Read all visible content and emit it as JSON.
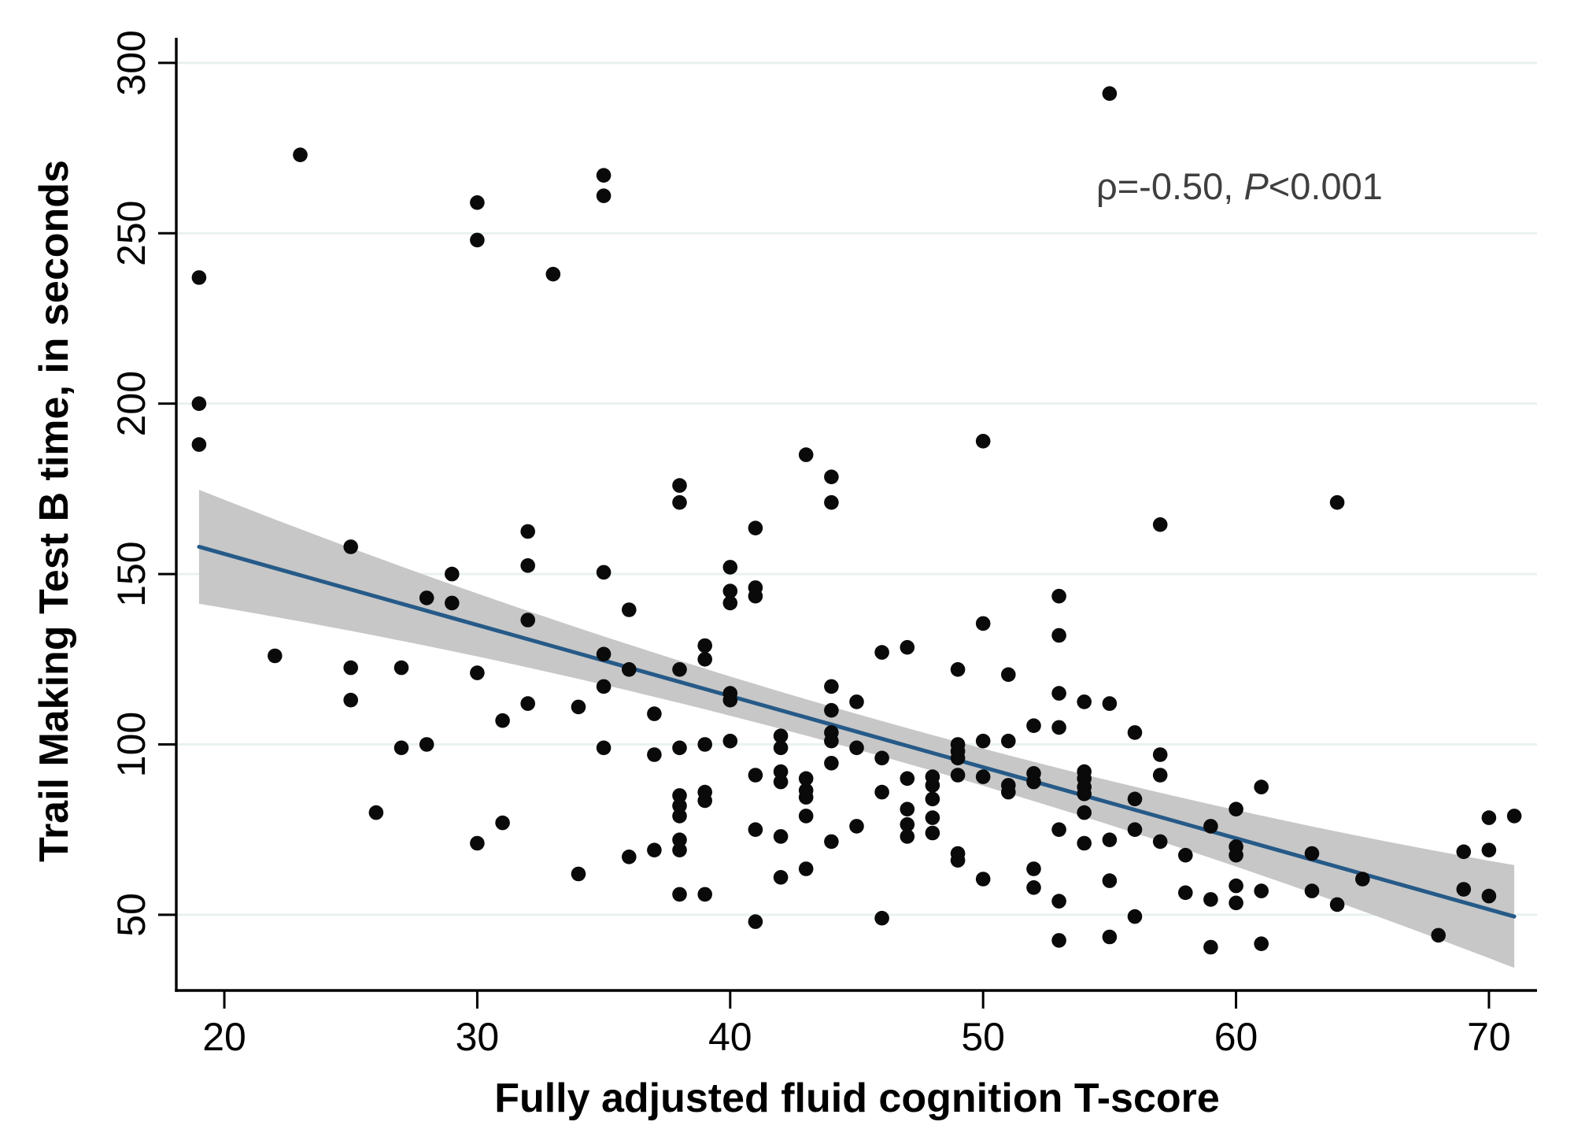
{
  "figure": {
    "annotation": {
      "rho_part": "ρ=-0.50, ",
      "p_italic": "P",
      "p_rest": "<0.001"
    }
  },
  "chart_data": {
    "type": "scatter",
    "title": "",
    "xlabel": "Fully adjusted fluid cognition T-score",
    "ylabel": "Trail Making Test B time, in seconds",
    "annotation": "ρ=-0.50, P<0.001",
    "correlation_rho": -0.5,
    "p_value": "<0.001",
    "xlim": [
      18.1,
      71.9
    ],
    "ylim": [
      27.8,
      306.9
    ],
    "x_ticks": [
      20,
      30,
      40,
      50,
      60,
      70
    ],
    "y_ticks": [
      50,
      100,
      150,
      200,
      250,
      300
    ],
    "grid": "horizontal",
    "legend": "none",
    "regression_line": {
      "x_start": 19,
      "y_start": 158,
      "x_end": 71,
      "y_end": 49.5
    },
    "ci_band": {
      "half_width_min": 5.2,
      "vertex_x": 46,
      "curvature": 0.0158,
      "x_start": 19,
      "x_end": 71
    },
    "colors": {
      "point": "#0a0a0a",
      "line": "#265a88",
      "band": "#c7c7c7",
      "grid": "#e8f2f1",
      "axis": "#000000",
      "annotation": "#3f3f3f"
    },
    "points": [
      [
        19,
        237
      ],
      [
        19,
        200
      ],
      [
        19,
        188
      ],
      [
        22,
        126
      ],
      [
        23,
        273
      ],
      [
        25,
        158
      ],
      [
        25,
        122.5
      ],
      [
        25,
        113
      ],
      [
        26,
        80
      ],
      [
        27,
        122.5
      ],
      [
        27,
        99
      ],
      [
        28,
        143
      ],
      [
        28,
        100
      ],
      [
        29,
        150
      ],
      [
        29,
        141.5
      ],
      [
        30,
        259
      ],
      [
        30,
        248
      ],
      [
        30,
        121
      ],
      [
        30,
        71
      ],
      [
        31,
        107
      ],
      [
        31,
        77
      ],
      [
        32,
        162.5
      ],
      [
        32,
        152.5
      ],
      [
        32,
        136.5
      ],
      [
        32,
        112
      ],
      [
        33,
        238
      ],
      [
        34,
        111
      ],
      [
        34,
        62
      ],
      [
        35,
        267
      ],
      [
        35,
        261
      ],
      [
        35,
        150.5
      ],
      [
        35,
        126.5
      ],
      [
        35,
        117
      ],
      [
        35,
        99
      ],
      [
        36,
        139.5
      ],
      [
        36,
        122
      ],
      [
        36,
        67
      ],
      [
        37,
        109
      ],
      [
        37,
        97
      ],
      [
        37,
        69
      ],
      [
        38,
        176
      ],
      [
        38,
        171
      ],
      [
        38,
        122
      ],
      [
        38,
        99
      ],
      [
        38,
        85
      ],
      [
        38,
        82
      ],
      [
        38,
        79
      ],
      [
        38,
        72
      ],
      [
        38,
        69
      ],
      [
        38,
        56
      ],
      [
        39,
        129
      ],
      [
        39,
        125
      ],
      [
        39,
        100
      ],
      [
        39,
        86
      ],
      [
        39,
        83.5
      ],
      [
        39,
        56
      ],
      [
        40,
        152
      ],
      [
        40,
        145
      ],
      [
        40,
        141.5
      ],
      [
        40,
        115
      ],
      [
        40,
        113
      ],
      [
        40,
        101
      ],
      [
        41,
        163.5
      ],
      [
        41,
        146
      ],
      [
        41,
        143.5
      ],
      [
        41,
        91
      ],
      [
        41,
        75
      ],
      [
        41,
        48
      ],
      [
        42,
        102.5
      ],
      [
        42,
        99
      ],
      [
        42,
        92
      ],
      [
        42,
        89
      ],
      [
        42,
        73
      ],
      [
        42,
        61
      ],
      [
        43,
        185
      ],
      [
        43,
        90
      ],
      [
        43,
        86.5
      ],
      [
        43,
        84.5
      ],
      [
        43,
        79
      ],
      [
        43,
        63.5
      ],
      [
        44,
        178.5
      ],
      [
        44,
        171
      ],
      [
        44,
        117
      ],
      [
        44,
        110
      ],
      [
        44,
        103.5
      ],
      [
        44,
        101
      ],
      [
        44,
        94.5
      ],
      [
        44,
        71.5
      ],
      [
        45,
        112.5
      ],
      [
        45,
        99
      ],
      [
        45,
        76
      ],
      [
        46,
        127
      ],
      [
        46,
        96
      ],
      [
        46,
        86
      ],
      [
        46,
        49
      ],
      [
        47,
        128.5
      ],
      [
        47,
        90
      ],
      [
        47,
        81
      ],
      [
        47,
        76.5
      ],
      [
        47,
        73
      ],
      [
        48,
        90.5
      ],
      [
        48,
        88
      ],
      [
        48,
        84
      ],
      [
        48,
        78.5
      ],
      [
        48,
        74
      ],
      [
        49,
        122
      ],
      [
        49,
        100
      ],
      [
        49,
        98
      ],
      [
        49,
        96
      ],
      [
        49,
        91
      ],
      [
        49,
        68
      ],
      [
        49,
        66
      ],
      [
        50,
        189
      ],
      [
        50,
        135.5
      ],
      [
        50,
        101
      ],
      [
        50,
        90.5
      ],
      [
        50,
        60.5
      ],
      [
        51,
        120.5
      ],
      [
        51,
        101
      ],
      [
        51,
        88
      ],
      [
        51,
        86
      ],
      [
        52,
        105.5
      ],
      [
        52,
        91.5
      ],
      [
        52,
        89
      ],
      [
        52,
        63.5
      ],
      [
        52,
        58
      ],
      [
        53,
        143.5
      ],
      [
        53,
        132
      ],
      [
        53,
        115
      ],
      [
        53,
        105
      ],
      [
        53,
        75
      ],
      [
        53,
        54
      ],
      [
        53,
        42.5
      ],
      [
        54,
        112.5
      ],
      [
        54,
        92
      ],
      [
        54,
        90
      ],
      [
        54,
        87.5
      ],
      [
        54,
        85.5
      ],
      [
        54,
        80
      ],
      [
        54,
        71
      ],
      [
        55,
        291
      ],
      [
        55,
        112
      ],
      [
        55,
        72
      ],
      [
        55,
        60
      ],
      [
        55,
        43.5
      ],
      [
        56,
        103.5
      ],
      [
        56,
        84
      ],
      [
        56,
        75
      ],
      [
        56,
        49.5
      ],
      [
        57,
        164.5
      ],
      [
        57,
        97
      ],
      [
        57,
        91
      ],
      [
        57,
        71.5
      ],
      [
        58,
        67.5
      ],
      [
        58,
        56.5
      ],
      [
        59,
        76
      ],
      [
        59,
        54.5
      ],
      [
        59,
        40.5
      ],
      [
        60,
        81
      ],
      [
        60,
        70
      ],
      [
        60,
        67.5
      ],
      [
        60,
        58.5
      ],
      [
        60,
        53.5
      ],
      [
        61,
        87.5
      ],
      [
        61,
        57
      ],
      [
        61,
        41.5
      ],
      [
        63,
        68
      ],
      [
        63,
        57
      ],
      [
        64,
        171
      ],
      [
        64,
        53
      ],
      [
        65,
        60.5
      ],
      [
        68,
        44
      ],
      [
        69,
        68.5
      ],
      [
        69,
        57.5
      ],
      [
        70,
        78.5
      ],
      [
        70,
        69
      ],
      [
        70,
        55.5
      ],
      [
        71,
        79
      ]
    ]
  }
}
